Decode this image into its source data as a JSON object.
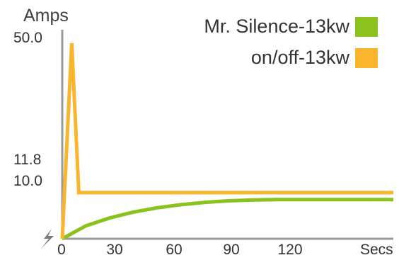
{
  "chart_data": {
    "type": "line",
    "ylabel": "Amps",
    "xunit_label": "Secs",
    "xlim": [
      0,
      140
    ],
    "ylim": [
      0,
      52
    ],
    "xticks": [
      0,
      30,
      60,
      90,
      120
    ],
    "yticks": [
      {
        "value": 50.0,
        "label": "50.0"
      },
      {
        "value": 11.8,
        "label": "11.8"
      },
      {
        "value": 10.0,
        "label": "10.0"
      }
    ],
    "grid": false,
    "legend_position": "top-right",
    "series": [
      {
        "name": "Mr. Silence-13kw",
        "color": "#8cc21e",
        "x": [
          0,
          10,
          20,
          30,
          40,
          50,
          60,
          70,
          80,
          90,
          100,
          110,
          120,
          140
        ],
        "y": [
          0,
          3.3,
          5.3,
          6.8,
          7.9,
          8.7,
          9.3,
          9.7,
          9.9,
          10.0,
          10.0,
          10.0,
          10.0,
          10.0
        ]
      },
      {
        "name": "on/off-13kw",
        "color": "#f9b52c",
        "x": [
          0,
          4,
          7,
          140
        ],
        "y": [
          0,
          50,
          11.8,
          11.8
        ]
      }
    ],
    "origin_icon": "lightning-bolt-icon"
  }
}
